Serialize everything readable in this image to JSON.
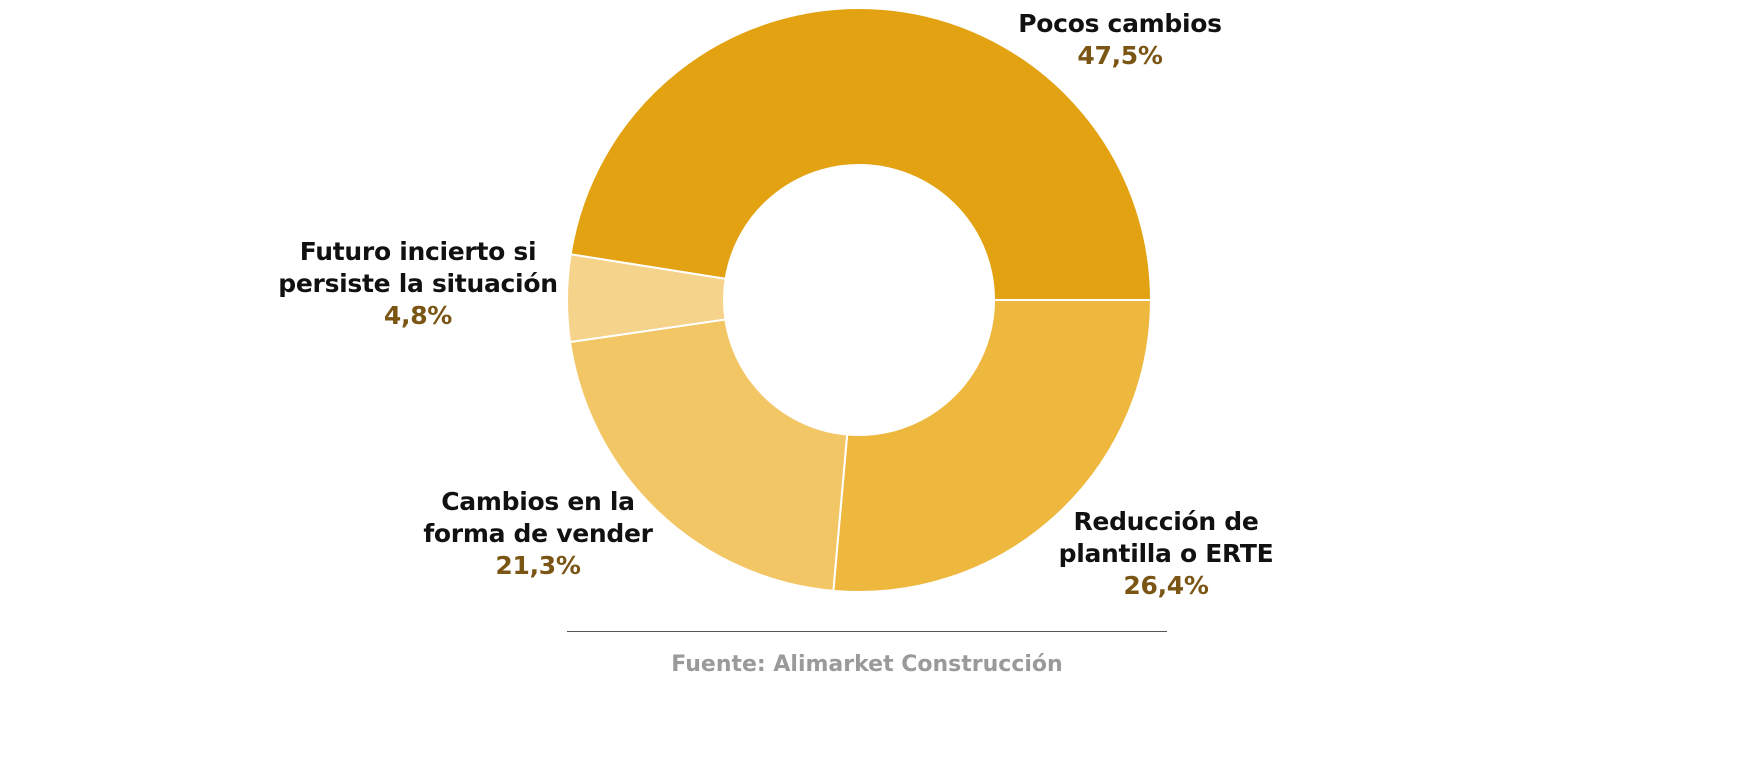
{
  "chart_data": {
    "type": "pie",
    "variant": "donut",
    "start_angle_deg": -81,
    "direction": "clockwise",
    "slices": [
      {
        "name_lines": [
          "Pocos cambios"
        ],
        "value": 47.5,
        "label": "47,5%",
        "color": "#E2A212"
      },
      {
        "name_lines": [
          "Reducción de",
          "plantilla o ERTE"
        ],
        "value": 26.4,
        "label": "26,4%",
        "color": "#EEB73E"
      },
      {
        "name_lines": [
          "Cambios en la",
          "forma de vender"
        ],
        "value": 21.3,
        "label": "21,3%",
        "color": "#F2C665"
      },
      {
        "name_lines": [
          "Futuro incierto si",
          "persiste la situación"
        ],
        "value": 4.8,
        "label": "4,8%",
        "color": "#F5D38A"
      }
    ],
    "label_color": "#7A5514",
    "source": "Fuente: Alimarket Construcción"
  }
}
